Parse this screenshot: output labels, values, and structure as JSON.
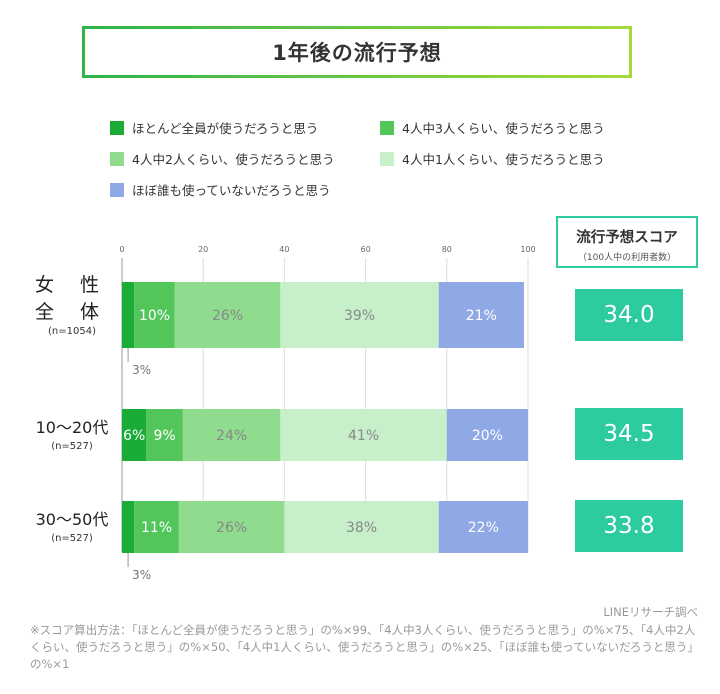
{
  "title": "1年後の流行予想",
  "legend": [
    {
      "label": "ほとんど全員が使うだろうと思う",
      "color": "#1aac37"
    },
    {
      "label": "4人中3人くらい、使うだろうと思う",
      "color": "#52c65b"
    },
    {
      "label": "4人中2人くらい、使うだろうと思う",
      "color": "#8fdc8f"
    },
    {
      "label": "4人中1人くらい、使うだろうと思う",
      "color": "#c7efc9"
    },
    {
      "label": "ほぼ誰も使っていないだろうと思う",
      "color": "#8fa8e6"
    }
  ],
  "score_header": {
    "title": "流行予想スコア",
    "subtitle": "（100人中の利用者数）"
  },
  "groups": [
    {
      "line1": "女 性",
      "line2": "全 体",
      "n": "(n=1054)",
      "score": "34.0"
    },
    {
      "line1": "10〜20代",
      "line2": "",
      "n": "(n=527)",
      "score": "34.5"
    },
    {
      "line1": "30〜50代",
      "line2": "",
      "n": "(n=527)",
      "score": "33.8"
    }
  ],
  "chart_data": {
    "type": "bar",
    "orientation": "horizontal-stacked",
    "x_ticks": [
      "0",
      "20",
      "40",
      "60",
      "80",
      "100"
    ],
    "xlim": [
      0,
      100
    ],
    "categories": [
      "女性全体",
      "10〜20代",
      "30〜50代"
    ],
    "series": [
      {
        "name": "ほとんど全員が使うだろうと思う",
        "values": [
          3,
          6,
          3
        ],
        "labels": [
          "3%",
          "6%",
          "3%"
        ]
      },
      {
        "name": "4人中3人くらい、使うだろうと思う",
        "values": [
          10,
          9,
          11
        ],
        "labels": [
          "10%",
          "9%",
          "11%"
        ]
      },
      {
        "name": "4人中2人くらい、使うだろうと思う",
        "values": [
          26,
          24,
          26
        ],
        "labels": [
          "26%",
          "24%",
          "26%"
        ]
      },
      {
        "name": "4人中1人くらい、使うだろうと思う",
        "values": [
          39,
          41,
          38
        ],
        "labels": [
          "39%",
          "41%",
          "38%"
        ]
      },
      {
        "name": "ほぼ誰も使っていないだろうと思う",
        "values": [
          21,
          20,
          22
        ],
        "labels": [
          "21%",
          "20%",
          "22%"
        ]
      }
    ]
  },
  "source": "LINEリサーチ調べ",
  "footnote": "※スコア算出方法：「ほとんど全員が使うだろうと思う」の%×99、「4人中3人くらい、使うだろうと思う」の%×75、「4人中2人くらい、使うだろうと思う」の%×50、「4人中1人くらい、使うだろうと思う」の%×25、「ほぼ誰も使っていないだろうと思う」の%×1"
}
